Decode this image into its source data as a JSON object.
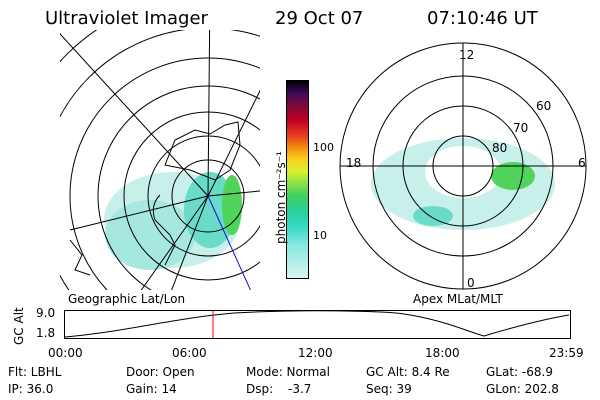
{
  "header": {
    "instrument": "Ultraviolet Imager",
    "date": "29 Oct 07",
    "time": "07:10:46 UT"
  },
  "colorbar": {
    "label": "photon cm⁻²s⁻¹",
    "ticks": [
      "100",
      "10"
    ]
  },
  "left_map": {
    "caption": "Geographic Lat/Lon"
  },
  "right_map": {
    "caption": "Apex MLat/MLT",
    "mlt_labels": {
      "top": "12",
      "left": "18",
      "right": "6",
      "bottom": "0"
    },
    "lat_labels": [
      "60",
      "70",
      "80"
    ]
  },
  "timeline": {
    "ylabel": "GC Alt",
    "ytick_top": "9.0",
    "ytick_bottom": "1.8",
    "xticks": [
      "00:00",
      "06:00",
      "12:00",
      "18:00",
      "23:59"
    ],
    "marker_time": "07:10:46"
  },
  "status": {
    "flt": "Flt: LBHL",
    "ip": "IP: 36.0",
    "door": "Door: Open",
    "gain": "Gain: 14",
    "mode": "Mode: Normal",
    "dsp_label": "Dsp:",
    "dsp_value": "-3.7",
    "gc_alt": "GC Alt: 8.4 Re",
    "seq": "Seq: 39",
    "glat": "GLat: -68.9",
    "glon": "GLon: 202.8"
  },
  "colors": {
    "marker": "#ff0000",
    "aurora_light": "#bfeee8",
    "aurora_mid": "#5fd9c9",
    "aurora_green": "#4fd35a",
    "track": "#1010cc"
  }
}
